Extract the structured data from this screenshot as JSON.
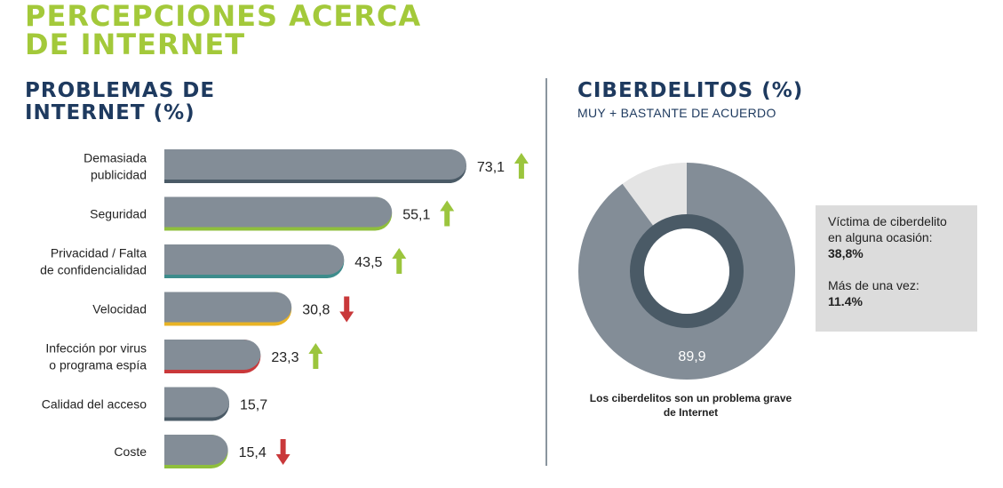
{
  "header": {
    "title_line1": "PERCEPCIONES ACERCA",
    "title_line2": "DE INTERNET"
  },
  "colors": {
    "title": "#a3c93a",
    "heading": "#1e3a5f",
    "bar": "#838d97",
    "up_arrow": "#9bc53d",
    "down_arrow": "#c9383a"
  },
  "chart_data": [
    {
      "type": "bar",
      "orientation": "horizontal",
      "title_line1": "PROBLEMAS DE",
      "title_line2": "INTERNET (%)",
      "xlim": [
        0,
        100
      ],
      "bars": [
        {
          "label": [
            "Demasiada",
            "publicidad"
          ],
          "value": 73.1,
          "value_label": "73,1",
          "trend": "up",
          "accent": "#4a5a66"
        },
        {
          "label": [
            "Seguridad"
          ],
          "value": 55.1,
          "value_label": "55,1",
          "trend": "up",
          "accent": "#8fbf3c"
        },
        {
          "label": [
            "Privacidad / Falta",
            "de confidencialidad"
          ],
          "value": 43.5,
          "value_label": "43,5",
          "trend": "up",
          "accent": "#3d8c8c"
        },
        {
          "label": [
            "Velocidad"
          ],
          "value": 30.8,
          "value_label": "30,8",
          "trend": "down",
          "accent": "#e8b325"
        },
        {
          "label": [
            "Infección por virus",
            "o programa espía"
          ],
          "value": 23.3,
          "value_label": "23,3",
          "trend": "up",
          "accent": "#c9383a"
        },
        {
          "label": [
            "Calidad del acceso"
          ],
          "value": 15.7,
          "value_label": "15,7",
          "trend": "none",
          "accent": "#4a5a66"
        },
        {
          "label": [
            "Coste"
          ],
          "value": 15.4,
          "value_label": "15,4",
          "trend": "down",
          "accent": "#8fbf3c"
        }
      ]
    },
    {
      "type": "pie",
      "title": "CIBERDELITOS (%)",
      "subtitle": "MUY + BASTANTE DE ACUERDO",
      "slices": [
        {
          "value": 89.9,
          "label": "89,9",
          "color": "#838d97"
        },
        {
          "value": 10.1,
          "label": "",
          "color": "#e4e4e4"
        }
      ],
      "inner_ring": {
        "value": 38.8,
        "color": "#4a5a66"
      },
      "caption_line1": "Los ciberdelitos son un problema grave",
      "caption_line2": "de Internet"
    }
  ],
  "info_box": {
    "line1": "Víctima de ciberdelito",
    "line2": "en alguna ocasión:",
    "value1": "38,8%",
    "line3": "Más de una vez:",
    "value2": "11.4%"
  }
}
